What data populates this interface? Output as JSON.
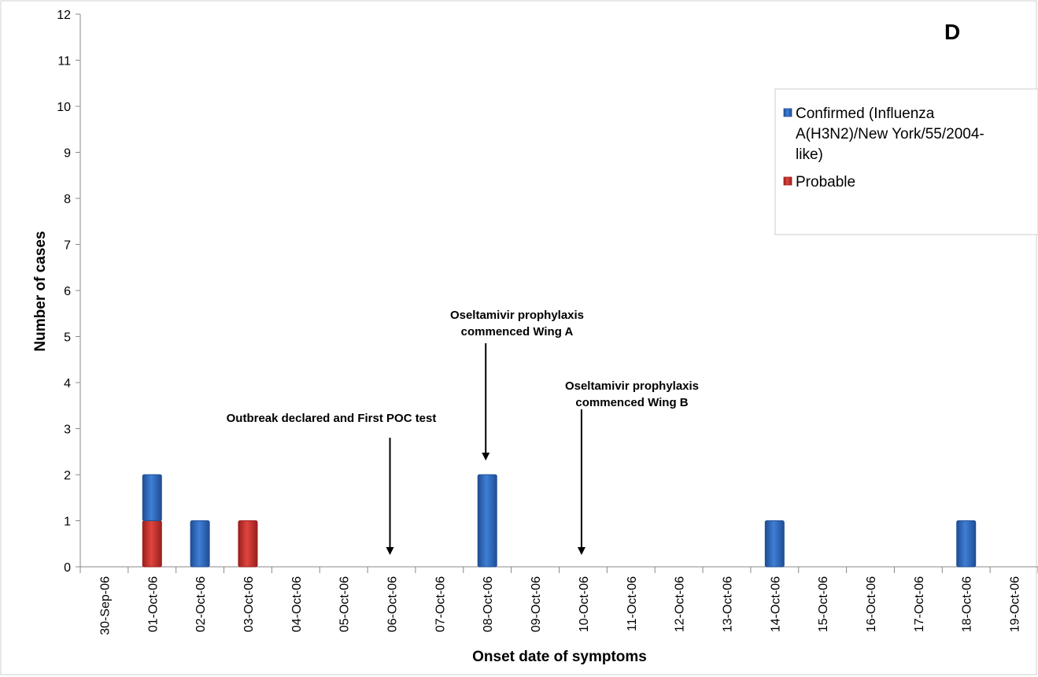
{
  "panel_label": "D",
  "colors": {
    "confirmed": "#2f6bbf",
    "confirmed_dark": "#1f4e94",
    "probable": "#d23a35",
    "probable_dark": "#9b1f1c",
    "axis": "#888888"
  },
  "annotations": [
    {
      "lines": [
        "Outbreak declared  and First POC test"
      ],
      "x": "06-Oct-06"
    },
    {
      "lines": [
        "Oseltamivir prophylaxis",
        "commenced Wing A"
      ],
      "x": "08-Oct-06"
    },
    {
      "lines": [
        "Oseltamivir prophylaxis",
        "commenced Wing B"
      ],
      "x": "10-Oct-06"
    }
  ],
  "legend": {
    "confirmed_lines": [
      "Confirmed (Influenza",
      "A(H3N2)/New York/55/2004-",
      "like)"
    ],
    "probable_label": "Probable"
  },
  "chart_data": {
    "type": "bar",
    "stacked": true,
    "title": "",
    "xlabel": "Onset date of symptoms",
    "ylabel": "Number of cases",
    "ylim": [
      0,
      12
    ],
    "yticks": [
      0,
      1,
      2,
      3,
      4,
      5,
      6,
      7,
      8,
      9,
      10,
      11,
      12
    ],
    "grid": false,
    "legend_position": "top-right",
    "categories": [
      "30-Sep-06",
      "01-Oct-06",
      "02-Oct-06",
      "03-Oct-06",
      "04-Oct-06",
      "05-Oct-06",
      "06-Oct-06",
      "07-Oct-06",
      "08-Oct-06",
      "09-Oct-06",
      "10-Oct-06",
      "11-Oct-06",
      "12-Oct-06",
      "13-Oct-06",
      "14-Oct-06",
      "15-Oct-06",
      "16-Oct-06",
      "17-Oct-06",
      "18-Oct-06",
      "19-Oct-06"
    ],
    "series": [
      {
        "name": "Probable",
        "color": "#d23a35",
        "values": [
          0,
          1,
          0,
          1,
          0,
          0,
          0,
          0,
          0,
          0,
          0,
          0,
          0,
          0,
          0,
          0,
          0,
          0,
          0,
          0
        ]
      },
      {
        "name": "Confirmed (Influenza A(H3N2)/New York/55/2004-like)",
        "color": "#2f6bbf",
        "values": [
          0,
          1,
          1,
          0,
          0,
          0,
          0,
          0,
          2,
          0,
          0,
          0,
          0,
          0,
          1,
          0,
          0,
          0,
          1,
          0
        ]
      }
    ]
  }
}
